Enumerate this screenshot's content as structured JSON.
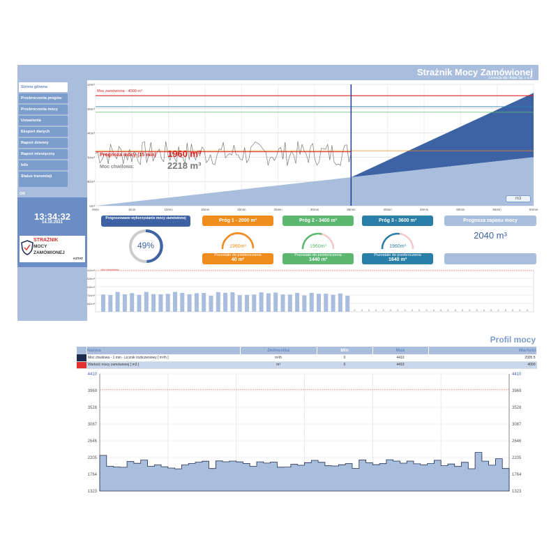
{
  "header": {
    "title": "Strażnik Mocy Zamówionej",
    "subtitle": "Licencja dla: Astat Sp. z o.o."
  },
  "sidebar": {
    "items": [
      {
        "label": "Strona główna",
        "active": true
      },
      {
        "label": "Przekroczenia progów"
      },
      {
        "label": "Przekroczenia mocy"
      },
      {
        "label": "Ustawienia"
      },
      {
        "label": "Eksport danych"
      },
      {
        "label": "Raport dzienny"
      },
      {
        "label": "Raport miesięczny"
      },
      {
        "label": "Info"
      }
    ],
    "status_label": "Status transmisji",
    "status_value": "OK",
    "clock_time": "13:34:32",
    "clock_date": "14.10.2021",
    "logo": {
      "line1": "STRAŻNIK",
      "line2": "MOCY",
      "line3": "ZAMÓWIONEJ",
      "brand": "ASTAT"
    }
  },
  "main_chart": {
    "y_ticks": [
      "4410m³",
      "3528m³",
      "2646m³",
      "1764m³",
      "882m³",
      "0m³"
    ],
    "x_ticks": [
      "0min",
      "5min",
      "10min",
      "15min",
      "20min",
      "25min",
      "30min",
      "35min",
      "40min",
      "45min",
      "50min",
      "55min",
      "60min"
    ],
    "ordered_label": "Moc zamówiona - 4000 m³",
    "forecast_label": "Prognoza mocy (15 min)",
    "forecast_value": "1960 m³",
    "instant_label": "Moc chwilowa:",
    "instant_value": "2218 m³",
    "unit_button": "m3"
  },
  "kpis": {
    "usage": {
      "title": "Prognozowane wykorzystanie mocy zamówionej",
      "value": "49%",
      "percent": 49
    },
    "thresholds": [
      {
        "title": "Próg 1 - 2000 m³",
        "gauge": "1960m³",
        "remaining_label": "Pozostało do przekroczenia",
        "remaining": "40 m³",
        "color": "#f08c1c",
        "level": 0.98
      },
      {
        "title": "Próg 2 - 3400 m³",
        "gauge": "1960m³",
        "remaining_label": "Pozostało do przekroczenia",
        "remaining": "1440 m³",
        "color": "#5cb870",
        "level": 0.58
      },
      {
        "title": "Próg 3 - 3600 m³",
        "gauge": "1960m³",
        "remaining_label": "Pozostało do przekroczenia",
        "remaining": "1640 m³",
        "color": "#2a7fa8",
        "level": 0.54
      }
    ],
    "reserve": {
      "title": "Prognoza zapasu mocy",
      "value": "2040 m³"
    }
  },
  "small_chart": {
    "y_ticks": [
      "4410m³",
      "3528m³",
      "2646m³",
      "1764m³",
      "882m³"
    ],
    "legend": "Moc zamówiona"
  },
  "profile": {
    "title": "Profil mocy",
    "columns": [
      "Nazwa",
      "Jednostka",
      "Min",
      "Max",
      "Wartość"
    ],
    "rows": [
      {
        "name": "Moc chwilowa - 1 min - Licznik rozliczeniowy [ m³/h ]",
        "unit": "m³/h",
        "min": "0",
        "max": "4410",
        "value": "2005.5",
        "color": "#1d2c4e"
      },
      {
        "name": "Wartość mocy zamówionej [ m3 ]",
        "unit": "m³",
        "min": "0",
        "max": "4410",
        "value": "4000",
        "color": "#e03030"
      }
    ],
    "y_ticks": [
      "4410",
      "3969",
      "3528",
      "3087",
      "2646",
      "2205",
      "1764",
      "1323"
    ]
  }
}
